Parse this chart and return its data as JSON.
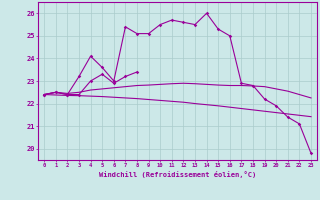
{
  "xlabel": "Windchill (Refroidissement éolien,°C)",
  "hours": [
    0,
    1,
    2,
    3,
    4,
    5,
    6,
    7,
    8,
    9,
    10,
    11,
    12,
    13,
    14,
    15,
    16,
    17,
    18,
    19,
    20,
    21,
    22,
    23
  ],
  "line1": [
    22.4,
    22.5,
    22.4,
    23.2,
    24.1,
    23.6,
    23.0,
    25.4,
    25.1,
    25.1,
    25.5,
    25.7,
    25.6,
    25.5,
    26.0,
    25.3,
    25.0,
    22.9,
    22.8,
    22.2,
    21.9,
    21.4,
    21.1,
    19.8
  ],
  "line2": [
    22.4,
    22.5,
    22.4,
    22.4,
    23.0,
    23.3,
    22.9,
    23.2,
    23.4,
    null,
    null,
    null,
    null,
    null,
    null,
    null,
    null,
    null,
    null,
    null,
    null,
    null,
    null,
    null
  ],
  "line3": [
    22.4,
    22.5,
    22.45,
    22.5,
    22.6,
    22.65,
    22.7,
    22.75,
    22.8,
    22.82,
    22.85,
    22.88,
    22.9,
    22.88,
    22.85,
    22.82,
    22.8,
    22.8,
    22.78,
    22.75,
    22.65,
    22.55,
    22.4,
    22.25
  ],
  "line4": [
    22.4,
    22.38,
    22.36,
    22.35,
    22.33,
    22.31,
    22.28,
    22.25,
    22.22,
    22.18,
    22.14,
    22.1,
    22.06,
    22.0,
    21.95,
    21.9,
    21.84,
    21.78,
    21.72,
    21.66,
    21.6,
    21.54,
    21.48,
    21.42
  ],
  "line_color": "#990099",
  "bg_color": "#cce8e8",
  "grid_color": "#aacccc",
  "ylim": [
    19.5,
    26.5
  ],
  "yticks": [
    20,
    21,
    22,
    23,
    24,
    25,
    26
  ]
}
